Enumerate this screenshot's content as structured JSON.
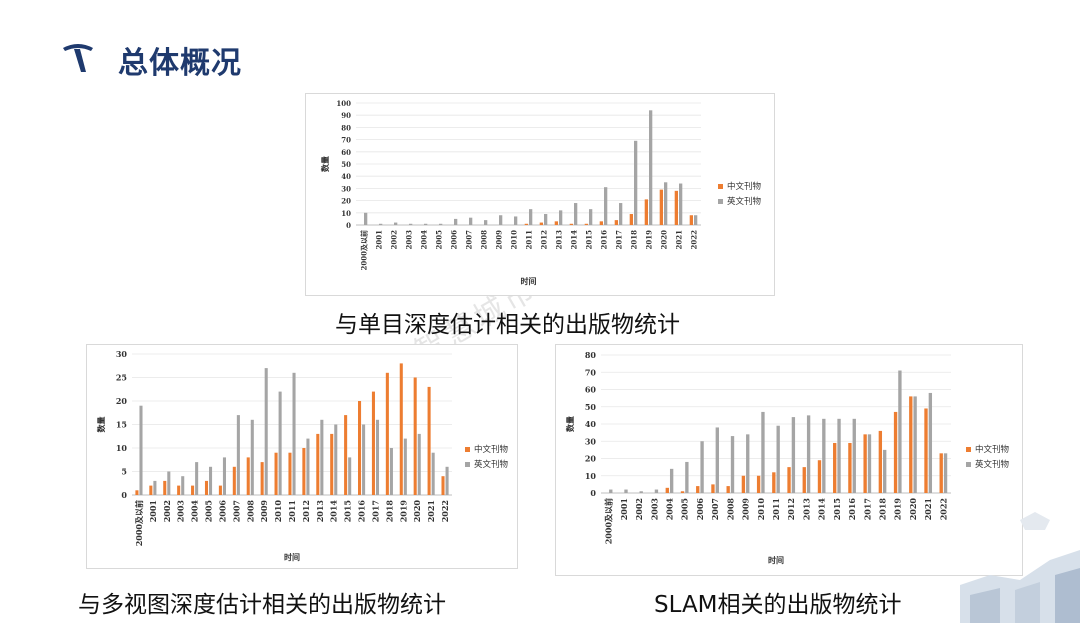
{
  "header": {
    "title": "总体概况"
  },
  "watermark": "智慧城市大讲堂",
  "colors": {
    "chinese": "#ED7D31",
    "english": "#A5A5A5",
    "title": "#1f3a6e"
  },
  "captions": {
    "c1": "与单目深度估计相关的出版物统计",
    "c2": "与多视图深度估计相关的出版物统计",
    "c3": "SLAM相关的出版物统计"
  },
  "chart_data": [
    {
      "type": "bar",
      "categories": [
        "2000及以前",
        "2001",
        "2002",
        "2003",
        "2004",
        "2005",
        "2006",
        "2007",
        "2008",
        "2009",
        "2010",
        "2011",
        "2012",
        "2013",
        "2014",
        "2015",
        "2016",
        "2017",
        "2018",
        "2019",
        "2020",
        "2021",
        "2022"
      ],
      "series": [
        {
          "name": "中文刊物",
          "values": [
            0,
            0,
            0,
            0,
            0,
            0,
            0,
            0,
            0,
            0,
            0,
            1,
            2,
            3,
            1,
            1,
            3,
            4,
            9,
            21,
            29,
            28,
            8
          ]
        },
        {
          "name": "英文刊物",
          "values": [
            10,
            1,
            2,
            1,
            1,
            1,
            5,
            6,
            4,
            8,
            7,
            13,
            9,
            12,
            18,
            13,
            31,
            18,
            69,
            94,
            35,
            34,
            8
          ]
        }
      ],
      "ylabel": "数量",
      "xlabel": "时间",
      "ylim": [
        0,
        100
      ],
      "yticks": [
        0,
        10,
        20,
        30,
        40,
        50,
        60,
        70,
        80,
        90,
        100
      ],
      "legend": "right"
    },
    {
      "type": "bar",
      "categories": [
        "2000及以前",
        "2001",
        "2002",
        "2003",
        "2004",
        "2005",
        "2006",
        "2007",
        "2008",
        "2009",
        "2010",
        "2011",
        "2012",
        "2013",
        "2014",
        "2015",
        "2016",
        "2017",
        "2018",
        "2019",
        "2020",
        "2021",
        "2022"
      ],
      "series": [
        {
          "name": "中文刊物",
          "values": [
            1,
            2,
            3,
            2,
            2,
            3,
            2,
            6,
            8,
            7,
            9,
            9,
            10,
            13,
            13,
            17,
            20,
            22,
            26,
            28,
            25,
            23,
            4
          ]
        },
        {
          "name": "英文刊物",
          "values": [
            19,
            3,
            5,
            4,
            7,
            6,
            8,
            17,
            16,
            27,
            22,
            26,
            12,
            16,
            15,
            8,
            15,
            16,
            10,
            12,
            13,
            9,
            6
          ]
        }
      ],
      "ylabel": "数量",
      "xlabel": "时间",
      "ylim": [
        0,
        30
      ],
      "yticks": [
        0,
        5,
        10,
        15,
        20,
        25,
        30
      ],
      "legend": "right"
    },
    {
      "type": "bar",
      "categories": [
        "2000及以前",
        "2001",
        "2002",
        "2003",
        "2004",
        "2005",
        "2006",
        "2007",
        "2008",
        "2009",
        "2010",
        "2011",
        "2012",
        "2013",
        "2014",
        "2015",
        "2016",
        "2017",
        "2018",
        "2019",
        "2020",
        "2021",
        "2022"
      ],
      "series": [
        {
          "name": "中文刊物",
          "values": [
            0,
            0,
            0,
            0,
            3,
            1,
            4,
            5,
            4,
            10,
            10,
            12,
            15,
            15,
            19,
            29,
            29,
            34,
            36,
            47,
            56,
            49,
            23
          ]
        },
        {
          "name": "英文刊物",
          "values": [
            2,
            2,
            1,
            2,
            14,
            18,
            30,
            38,
            33,
            34,
            47,
            39,
            44,
            45,
            43,
            43,
            43,
            34,
            25,
            71,
            56,
            58,
            23
          ]
        }
      ],
      "ylabel": "数量",
      "xlabel": "时间",
      "ylim": [
        0,
        80
      ],
      "yticks": [
        0,
        10,
        20,
        30,
        40,
        50,
        60,
        70,
        80
      ],
      "legend": "right"
    }
  ]
}
